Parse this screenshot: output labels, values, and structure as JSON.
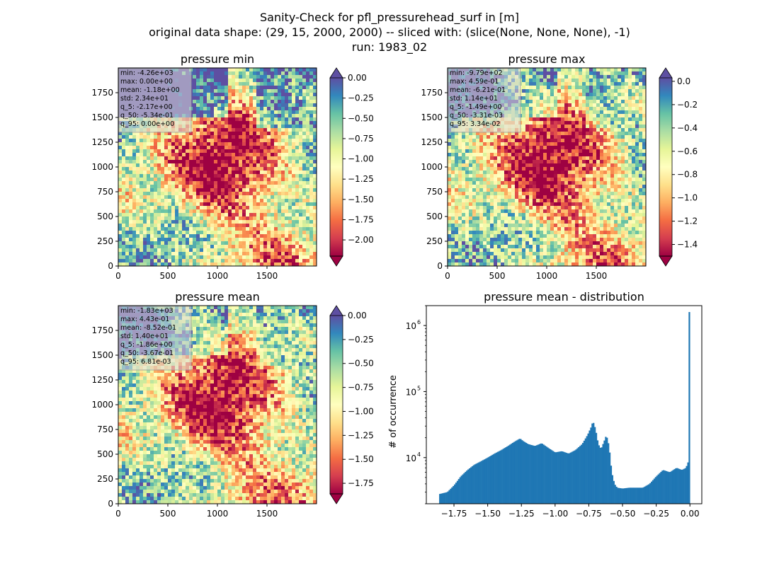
{
  "figure": {
    "title_line1": "Sanity-Check for pfl_pressurehead_surf in [m]",
    "title_line2": "original data shape: (29, 15, 2000, 2000) -- sliced with: (slice(None, None, None), -1)",
    "title_line3": "run: 1983_02"
  },
  "colormap": {
    "name": "Spectral",
    "stops": [
      "#9e0142",
      "#d53e4f",
      "#f46d43",
      "#fdae61",
      "#fee08b",
      "#ffffbf",
      "#e6f598",
      "#abdda4",
      "#66c2a5",
      "#3288bd",
      "#5e4fa2"
    ]
  },
  "chart_data": [
    {
      "type": "heatmap",
      "title": "pressure min",
      "xticks": [
        "0",
        "500",
        "1000",
        "1500"
      ],
      "yticks": [
        "0",
        "250",
        "500",
        "750",
        "1000",
        "1250",
        "1500",
        "1750"
      ],
      "xlim": [
        0,
        2000
      ],
      "ylim": [
        0,
        2000
      ],
      "colorbar": {
        "vmin": -2.2,
        "vmax": 0.0,
        "ticks": [
          "0.00",
          "−0.25",
          "−0.50",
          "−0.75",
          "−1.00",
          "−1.25",
          "−1.50",
          "−1.75",
          "−2.00"
        ],
        "tick_values": [
          0.0,
          -0.25,
          -0.5,
          -0.75,
          -1.0,
          -1.25,
          -1.5,
          -1.75,
          -2.0
        ],
        "extend": "both"
      },
      "stats": [
        "min: -4.26e+03",
        "max: 0.00e+00",
        "mean: -1.18e+00",
        "std: 2.34e+01",
        "q_5: -2.17e+00",
        "q_50: -5.34e-01",
        "q_95: 0.00e+00"
      ]
    },
    {
      "type": "heatmap",
      "title": "pressure max",
      "xticks": [
        "0",
        "500",
        "1000",
        "1500"
      ],
      "yticks": [
        "0",
        "250",
        "500",
        "750",
        "1000",
        "1250",
        "1500",
        "1750"
      ],
      "xlim": [
        0,
        2000
      ],
      "ylim": [
        0,
        2000
      ],
      "colorbar": {
        "vmin": -1.5,
        "vmax": 0.03,
        "ticks": [
          "0.0",
          "−0.2",
          "−0.4",
          "−0.6",
          "−0.8",
          "−1.0",
          "−1.2",
          "−1.4"
        ],
        "tick_values": [
          0.0,
          -0.2,
          -0.4,
          -0.6,
          -0.8,
          -1.0,
          -1.2,
          -1.4
        ],
        "extend": "both"
      },
      "stats": [
        "min: -9.79e+02",
        "max: 4.59e-01",
        "mean: -6.21e-01",
        "std: 1.14e+01",
        "q_5: -1.49e+00",
        "q_50: -3.31e-03",
        "q_95: 3.34e-02"
      ]
    },
    {
      "type": "heatmap",
      "title": "pressure mean",
      "xticks": [
        "0",
        "500",
        "1000",
        "1500"
      ],
      "yticks": [
        "0",
        "250",
        "500",
        "750",
        "1000",
        "1250",
        "1500",
        "1750"
      ],
      "xlim": [
        0,
        2000
      ],
      "ylim": [
        0,
        2000
      ],
      "colorbar": {
        "vmin": -1.86,
        "vmax": 0.0,
        "ticks": [
          "0.00",
          "−0.25",
          "−0.50",
          "−0.75",
          "−1.00",
          "−1.25",
          "−1.50",
          "−1.75"
        ],
        "tick_values": [
          0.0,
          -0.25,
          -0.5,
          -0.75,
          -1.0,
          -1.25,
          -1.5,
          -1.75
        ],
        "extend": "both"
      },
      "stats": [
        "min: -1.83e+03",
        "max: 4.43e-01",
        "mean: -8.52e-01",
        "std: 1.40e+01",
        "q_5: -1.86e+00",
        "q_50: -3.67e-01",
        "q_95: 6.81e-03"
      ]
    },
    {
      "type": "bar",
      "title": "pressure mean - distribution",
      "ylabel": "# of occurrence",
      "xlabel": "",
      "yscale": "log",
      "xlim": [
        -1.955,
        0.088
      ],
      "ylim": [
        2000,
        2000000
      ],
      "xticks": [
        "−1.75",
        "−1.50",
        "−1.25",
        "−1.00",
        "−0.75",
        "−0.50",
        "−0.25",
        "0.00"
      ],
      "xtick_values": [
        -1.75,
        -1.5,
        -1.25,
        -1.0,
        -0.75,
        -0.5,
        -0.25,
        0.0
      ],
      "yticks": [
        "10",
        "10",
        "10"
      ],
      "ytick_exponents": [
        "4",
        "5",
        "6"
      ],
      "ytick_values": [
        10000,
        100000,
        1000000
      ],
      "bar_color": "#1f77b4",
      "bin_edges": {
        "start": -1.86,
        "end": 0.0,
        "count": 186
      },
      "anchors": [
        [
          -1.86,
          2800
        ],
        [
          -1.8,
          3000
        ],
        [
          -1.75,
          3800
        ],
        [
          -1.7,
          5200
        ],
        [
          -1.65,
          6500
        ],
        [
          -1.6,
          7800
        ],
        [
          -1.55,
          8800
        ],
        [
          -1.5,
          10000
        ],
        [
          -1.45,
          11500
        ],
        [
          -1.4,
          13000
        ],
        [
          -1.35,
          15000
        ],
        [
          -1.3,
          17500
        ],
        [
          -1.26,
          19500
        ],
        [
          -1.24,
          18000
        ],
        [
          -1.2,
          16000
        ],
        [
          -1.15,
          15000
        ],
        [
          -1.1,
          16500
        ],
        [
          -1.05,
          14000
        ],
        [
          -1.0,
          12000
        ],
        [
          -0.95,
          12500
        ],
        [
          -0.9,
          11500
        ],
        [
          -0.85,
          13000
        ],
        [
          -0.8,
          16000
        ],
        [
          -0.76,
          22000
        ],
        [
          -0.73,
          30000
        ],
        [
          -0.72,
          36000
        ],
        [
          -0.7,
          27000
        ],
        [
          -0.68,
          16000
        ],
        [
          -0.66,
          13500
        ],
        [
          -0.64,
          17000
        ],
        [
          -0.62,
          22000
        ],
        [
          -0.6,
          15000
        ],
        [
          -0.58,
          6000
        ],
        [
          -0.56,
          4000
        ],
        [
          -0.54,
          3500
        ],
        [
          -0.5,
          3400
        ],
        [
          -0.45,
          3500
        ],
        [
          -0.4,
          3500
        ],
        [
          -0.35,
          3500
        ],
        [
          -0.3,
          4000
        ],
        [
          -0.25,
          5200
        ],
        [
          -0.2,
          6500
        ],
        [
          -0.15,
          6000
        ],
        [
          -0.1,
          7000
        ],
        [
          -0.06,
          6500
        ],
        [
          -0.03,
          7000
        ],
        [
          -0.01,
          9000
        ],
        [
          0.0,
          1600000
        ]
      ]
    }
  ]
}
